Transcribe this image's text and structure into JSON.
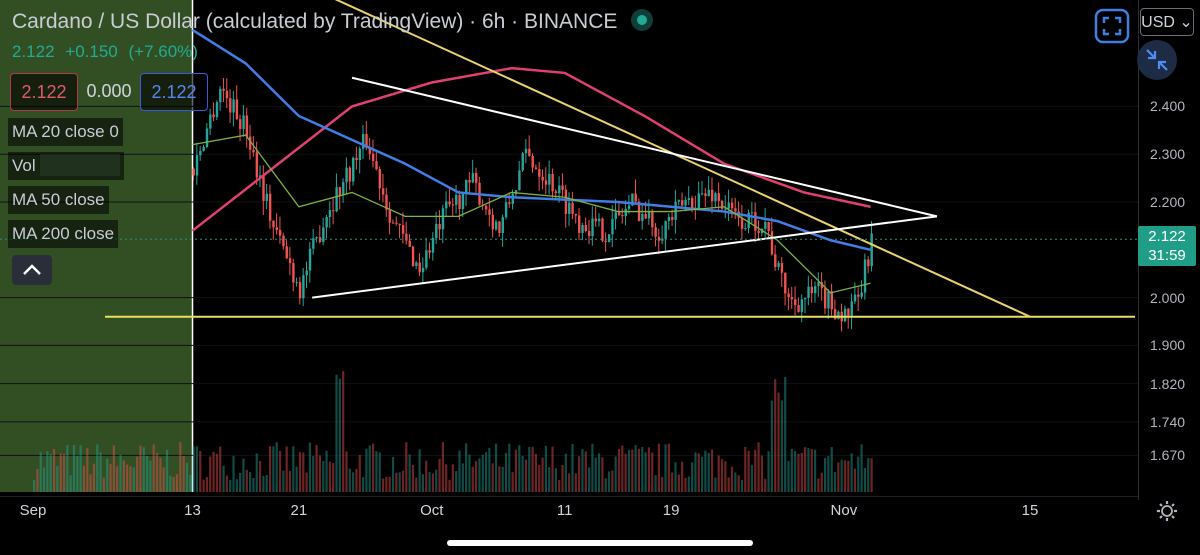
{
  "header": {
    "title": "Cardano / US Dollar (calculated by TradingView) · 6h · BINANCE",
    "last": "2.122",
    "change": "+0.150",
    "change_pct": "(+7.60%)"
  },
  "quote": {
    "bid": "2.122",
    "spread": "0.000",
    "ask": "2.122"
  },
  "indicators": [
    {
      "label": "MA 20 close 0"
    },
    {
      "label": "Vol"
    },
    {
      "label": "MA 50 close"
    },
    {
      "label": "MA 200 close"
    }
  ],
  "toolbar": {
    "currency": "USD",
    "currency_caret": "⌄"
  },
  "price_tag": {
    "price": "2.122",
    "countdown": "31:59"
  },
  "colors": {
    "up": "#26a69a",
    "down": "#ef5350",
    "ma20": "#7cb342",
    "ma50": "#3f7fe3",
    "ma200": "#e04070",
    "trendline": "#e9d36c",
    "triangle": "#ffffff",
    "support": "#e8e05a"
  },
  "chart_data": {
    "type": "candlestick",
    "x_ticks": [
      {
        "label": "Sep",
        "date": "2021-09-01"
      },
      {
        "label": "13",
        "date": "2021-09-13"
      },
      {
        "label": "21",
        "date": "2021-09-21"
      },
      {
        "label": "Oct",
        "date": "2021-10-01"
      },
      {
        "label": "11",
        "date": "2021-10-11"
      },
      {
        "label": "19",
        "date": "2021-10-19"
      },
      {
        "label": "Nov",
        "date": "2021-11-01"
      },
      {
        "label": "15",
        "date": "2021-11-15"
      }
    ],
    "y_ticks": [
      "2.400",
      "2.300",
      "2.200",
      "2.000",
      "1.900",
      "1.820",
      "1.740",
      "1.670"
    ],
    "y_tick_values": [
      2.4,
      2.3,
      2.2,
      2.0,
      1.9,
      1.82,
      1.74,
      1.67
    ],
    "last_price": 2.122,
    "close_path": [
      [
        "2021-09-13",
        2.27
      ],
      [
        "2021-09-15",
        2.44
      ],
      [
        "2021-09-17",
        2.35
      ],
      [
        "2021-09-19",
        2.15
      ],
      [
        "2021-09-21",
        2.02
      ],
      [
        "2021-09-23",
        2.18
      ],
      [
        "2021-09-26",
        2.33
      ],
      [
        "2021-09-28",
        2.16
      ],
      [
        "2021-09-30",
        2.06
      ],
      [
        "2021-10-02",
        2.18
      ],
      [
        "2021-10-04",
        2.24
      ],
      [
        "2021-10-06",
        2.14
      ],
      [
        "2021-10-08",
        2.3
      ],
      [
        "2021-10-10",
        2.24
      ],
      [
        "2021-10-12",
        2.16
      ],
      [
        "2021-10-14",
        2.14
      ],
      [
        "2021-10-16",
        2.2
      ],
      [
        "2021-10-18",
        2.14
      ],
      [
        "2021-10-20",
        2.2
      ],
      [
        "2021-10-22",
        2.22
      ],
      [
        "2021-10-24",
        2.16
      ],
      [
        "2021-10-26",
        2.16
      ],
      [
        "2021-10-27",
        2.05
      ],
      [
        "2021-10-28",
        1.99
      ],
      [
        "2021-10-30",
        2.01
      ],
      [
        "2021-11-01",
        1.96
      ],
      [
        "2021-11-02",
        1.99
      ],
      [
        "2021-11-03",
        2.122
      ]
    ],
    "ma20": [
      [
        "2021-09-13",
        2.32
      ],
      [
        "2021-09-17",
        2.34
      ],
      [
        "2021-09-21",
        2.19
      ],
      [
        "2021-09-25",
        2.22
      ],
      [
        "2021-09-29",
        2.17
      ],
      [
        "2021-10-03",
        2.17
      ],
      [
        "2021-10-07",
        2.22
      ],
      [
        "2021-10-11",
        2.21
      ],
      [
        "2021-10-15",
        2.18
      ],
      [
        "2021-10-19",
        2.18
      ],
      [
        "2021-10-23",
        2.19
      ],
      [
        "2021-10-27",
        2.12
      ],
      [
        "2021-10-31",
        2.01
      ],
      [
        "2021-11-03",
        2.03
      ]
    ],
    "ma50": [
      [
        "2021-09-13",
        2.56
      ],
      [
        "2021-09-17",
        2.49
      ],
      [
        "2021-09-21",
        2.38
      ],
      [
        "2021-09-25",
        2.33
      ],
      [
        "2021-09-29",
        2.28
      ],
      [
        "2021-10-03",
        2.22
      ],
      [
        "2021-10-07",
        2.21
      ],
      [
        "2021-10-11",
        2.205
      ],
      [
        "2021-10-15",
        2.2
      ],
      [
        "2021-10-19",
        2.19
      ],
      [
        "2021-10-23",
        2.18
      ],
      [
        "2021-10-27",
        2.16
      ],
      [
        "2021-10-31",
        2.12
      ],
      [
        "2021-11-03",
        2.1
      ]
    ],
    "ma200": [
      [
        "2021-09-13",
        2.14
      ],
      [
        "2021-09-19",
        2.27
      ],
      [
        "2021-09-25",
        2.4
      ],
      [
        "2021-10-01",
        2.45
      ],
      [
        "2021-10-07",
        2.48
      ],
      [
        "2021-10-11",
        2.47
      ],
      [
        "2021-10-17",
        2.38
      ],
      [
        "2021-10-23",
        2.28
      ],
      [
        "2021-10-29",
        2.22
      ],
      [
        "2021-11-03",
        2.19
      ]
    ],
    "annotations": {
      "descending_trendline": [
        [
          "2021-09-17",
          2.71
        ],
        [
          "2021-11-15",
          1.96
        ]
      ],
      "triangle_upper": [
        [
          "2021-09-25",
          2.46
        ],
        [
          "2021-11-08",
          2.17
        ]
      ],
      "triangle_lower": [
        [
          "2021-09-22",
          2.0
        ],
        [
          "2021-11-08",
          2.17
        ]
      ],
      "support": 1.96
    }
  }
}
